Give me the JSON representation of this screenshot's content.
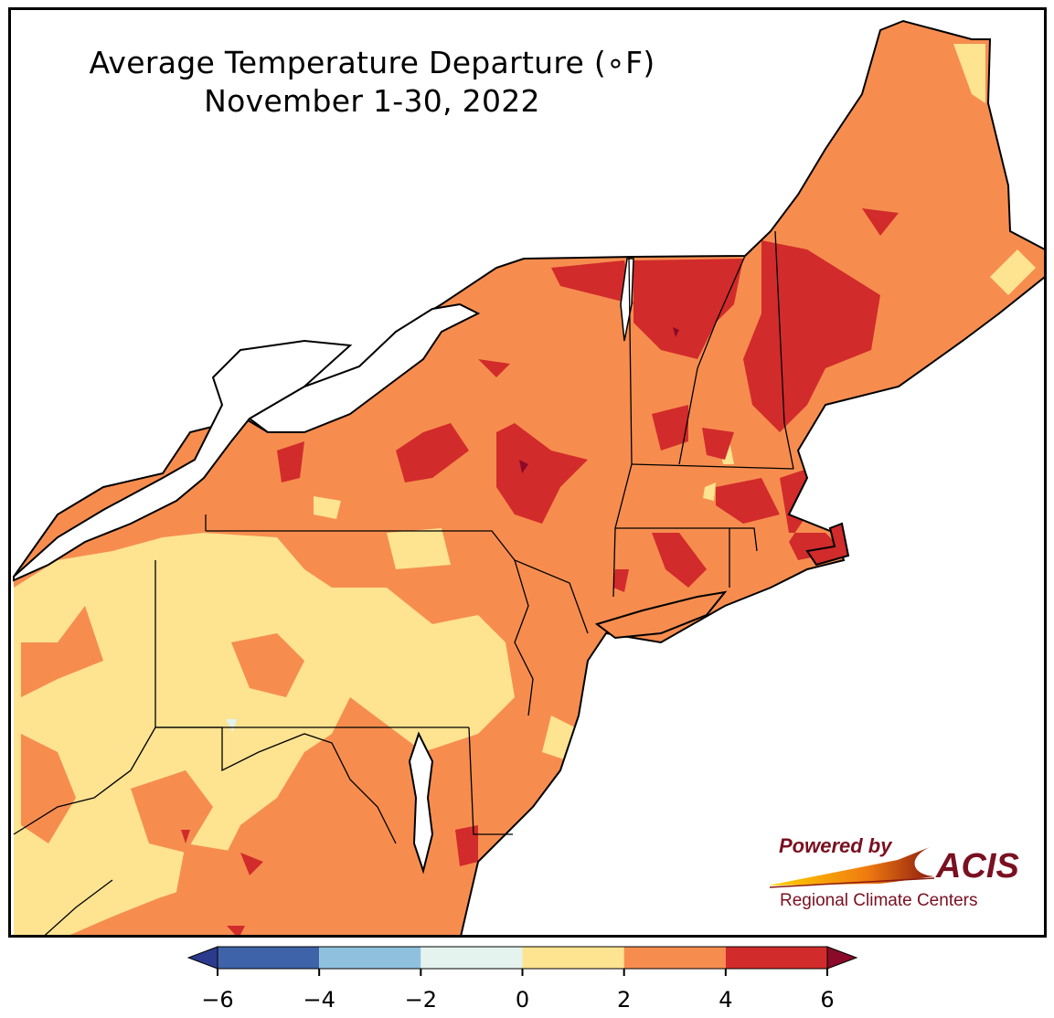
{
  "title": {
    "line1": "Average Temperature Departure (∘F)",
    "line2": "November 1-30, 2022"
  },
  "logo": {
    "powered_by": "Powered by",
    "name": "ACIS",
    "subtitle": "Regional Climate Centers"
  },
  "colorbar": {
    "bins": [
      {
        "min": -6,
        "max": -4,
        "color": "#3f63a8"
      },
      {
        "min": -4,
        "max": -2,
        "color": "#8fc1de"
      },
      {
        "min": -2,
        "max": 0,
        "color": "#e4f3ee"
      },
      {
        "min": 0,
        "max": 2,
        "color": "#fee391"
      },
      {
        "min": 2,
        "max": 4,
        "color": "#f68d4f"
      },
      {
        "min": 4,
        "max": 6,
        "color": "#d22b2b"
      }
    ],
    "under_color": "#2b3a8c",
    "over_color": "#8b0a2a",
    "ticks": [
      "−6",
      "−4",
      "−2",
      "0",
      "2",
      "4",
      "6"
    ]
  },
  "colors": {
    "dominant": "#f68d4f",
    "warmest": "#d22b2b",
    "coolest_shown": "#fee391",
    "water": "#ffffff",
    "borders": "#000000"
  }
}
